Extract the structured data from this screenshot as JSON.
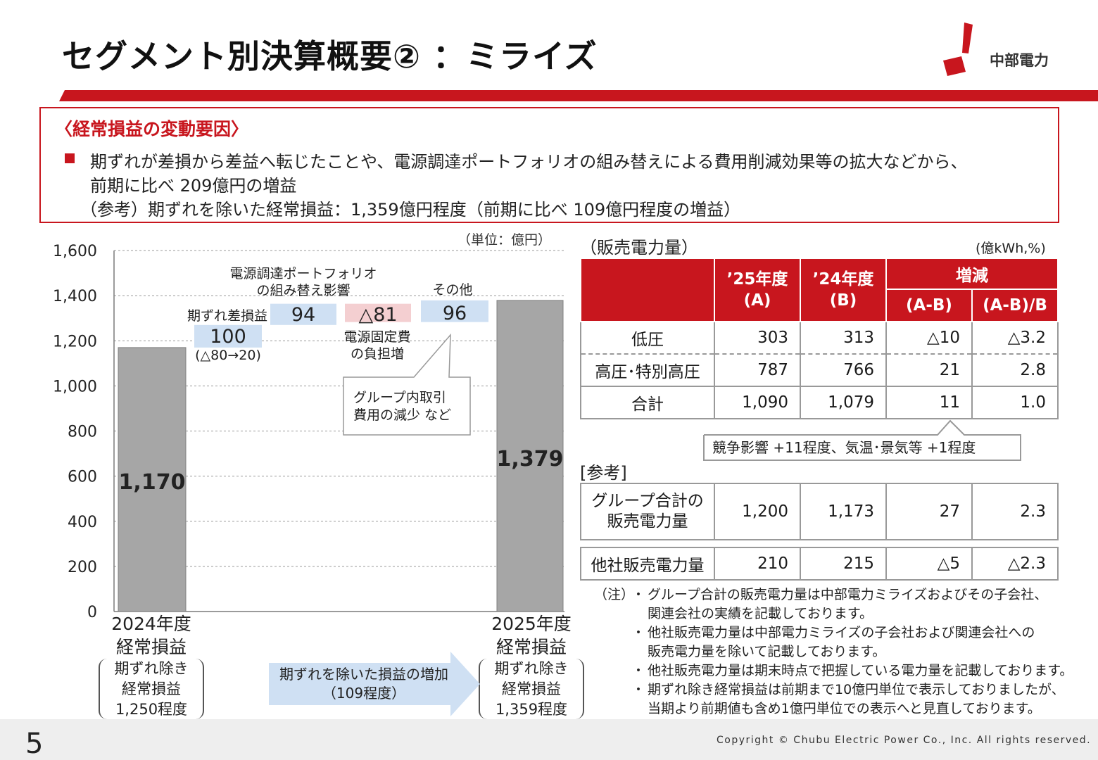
{
  "title": "セグメント別決算概要② ：ミライズ",
  "logo_text": "中部電力",
  "factors": {
    "heading": "〈経常損益の変動要因〉",
    "line1": "期ずれが差損から差益へ転じたことや、電源調達ポートフォリオの組み替えによる費用削減効果等の拡大などから、",
    "line2": "前期に比べ 209億円の増益",
    "line3": "（参考）期ずれを除いた経常損益：1,359億円程度（前期に比べ 109億円程度の増益）"
  },
  "chart_data": {
    "type": "bar",
    "subtype": "waterfall",
    "unit": "（単位：億円）",
    "yticks": [
      "1,600",
      "1,400",
      "1,200",
      "1,000",
      "800",
      "600",
      "400",
      "200",
      "0"
    ],
    "ylim": [
      0,
      1600
    ],
    "grid": true,
    "bars": [
      {
        "label": "2024年度経常損益",
        "value": 1170,
        "value_label": "1,170"
      },
      {
        "label": "2025年度経常損益",
        "value": 1379,
        "value_label": "1,379"
      }
    ],
    "steps": [
      {
        "label": "期ずれ差損益",
        "value": 100,
        "value_label": "100",
        "sublabel": "(△80→20)",
        "base": 1170,
        "color": "#cfe0f3"
      },
      {
        "label_line1": "電源調達ポートフォリオ",
        "label_line2": "の組み替え影響",
        "value": 94,
        "value_label": "94",
        "base": 1270,
        "color": "#cfe0f3"
      },
      {
        "label_line1": "電源固定費",
        "label_line2": "の負担増",
        "value": -81,
        "value_label": "△81",
        "base": 1364,
        "color": "#f4cfd1"
      },
      {
        "label": "その他",
        "value": 96,
        "value_label": "96",
        "base": 1283,
        "color": "#cfe0f3"
      }
    ],
    "other_callout": {
      "line1": "グループ内取引",
      "line2": "費用の減少 など"
    }
  },
  "year_labels": {
    "left_line1": "2024年度",
    "left_line2": "経常損益",
    "right_line1": "2025年度",
    "right_line2": "経常損益"
  },
  "adjusted": {
    "left_line1": "期ずれ除き",
    "left_line2": "経常損益",
    "left_line3": "1,250程度",
    "right_line1": "期ずれ除き",
    "right_line2": "経常損益",
    "right_line3": "1,359程度",
    "arrow_line1": "期ずれを除いた損益の増加",
    "arrow_line2": "（109程度）"
  },
  "sales_table": {
    "title": "（販売電力量）",
    "unit": "(億kWh,%)",
    "headers": {
      "col_a": "’25年度",
      "col_a2": "(A)",
      "col_b": "’24年度",
      "col_b2": "(B)",
      "diff": "増減",
      "diff_ab": "(A-B)",
      "diff_pct": "(A-B)/B"
    },
    "rows": [
      {
        "label": "低圧",
        "a": "303",
        "b": "313",
        "diff": "△10",
        "pct": "△3.2"
      },
      {
        "label": "高圧･特別高圧",
        "a": "787",
        "b": "766",
        "diff": "21",
        "pct": "2.8"
      },
      {
        "label": "合計",
        "a": "1,090",
        "b": "1,079",
        "diff": "11",
        "pct": "1.0"
      }
    ],
    "callout": "競争影響 +11程度、気温･景気等 +1程度"
  },
  "reference": {
    "title": "[参考]",
    "group_label_line1": "グループ合計の",
    "group_label_line2": "販売電力量",
    "group": {
      "a": "1,200",
      "b": "1,173",
      "diff": "27",
      "pct": "2.3"
    },
    "other_label": "他社販売電力量",
    "other": {
      "a": "210",
      "b": "215",
      "diff": "△5",
      "pct": "△2.3"
    }
  },
  "notes": {
    "head": "（注）",
    "items": [
      "グループ合計の販売電力量は中部電力ミライズおよびその子会社、",
      "関連会社の実績を記載しております。",
      "他社販売電力量は中部電力ミライズの子会社および関連会社への",
      "販売電力量を除いて記載しております。",
      "他社販売電力量は期末時点で把握している電力量を記載しております。",
      "期ずれ除き経常損益は前期まで10億円単位で表示しておりましたが、",
      "当期より前期値も含め1億円単位での表示へと見直しております。"
    ]
  },
  "page_number": "5",
  "copyright": "Copyright © Chubu Electric Power Co., Inc. All rights reserved.",
  "colors": {
    "accent": "#c8161e",
    "bar": "#a6a6a6",
    "increase": "#cfe0f3",
    "decrease": "#f4cfd1",
    "arrow": "#cfe0f3"
  }
}
